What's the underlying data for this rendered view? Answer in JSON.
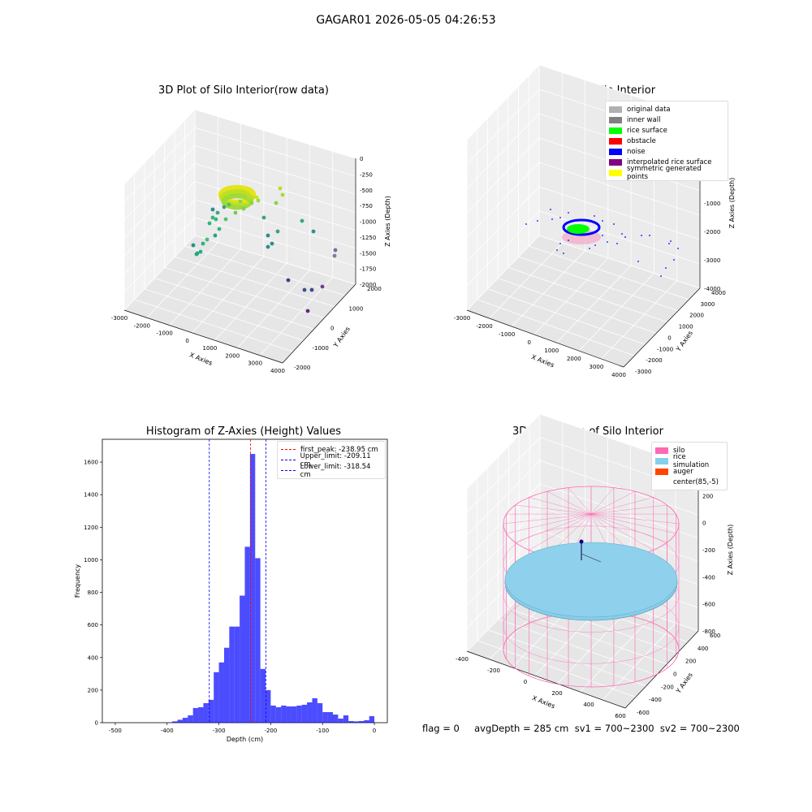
{
  "suptitle": "GAGAR01 2026-05-05 04:26:53",
  "panels": {
    "raw": {
      "title": "3D Plot of Silo Interior(row data)",
      "xlabel": "X Axies",
      "ylabel": "Y Axies",
      "zlabel": "Z Axies (Depth)",
      "xticks": [
        "-3000",
        "-2000",
        "-1000",
        "0",
        "1000",
        "2000",
        "3000",
        "4000"
      ],
      "yticks": [
        "-2000",
        "-1000",
        "0",
        "1000",
        "2000"
      ],
      "zticks": [
        "0",
        "-250",
        "-500",
        "-750",
        "-1000",
        "-1250",
        "-1500",
        "-1750",
        "-2000"
      ]
    },
    "classify": {
      "title": "3D classify of Silo Interior",
      "xlabel": "X Axies",
      "ylabel": "Y Axies",
      "zlabel": "Z Axies (Depth)",
      "xticks": [
        "-3000",
        "-2000",
        "-1000",
        "0",
        "1000",
        "2000",
        "3000",
        "4000"
      ],
      "yticks": [
        "-3000",
        "-2000",
        "-1000",
        "0",
        "1000",
        "2000",
        "3000",
        "4000"
      ],
      "zticks": [
        "2000",
        "1000",
        "0",
        "-1000",
        "-2000",
        "-3000",
        "-4000"
      ],
      "legend": [
        {
          "label": "original data",
          "color": "#b0b0b0"
        },
        {
          "label": "inner wall",
          "color": "#808080"
        },
        {
          "label": "rice surface",
          "color": "#00ff00"
        },
        {
          "label": "obstacle",
          "color": "#ff0000"
        },
        {
          "label": "noise",
          "color": "#0000ff"
        },
        {
          "label": "interpolated rice surface",
          "color": "#800080"
        },
        {
          "label": "symmetric generated points",
          "color": "#ffff00"
        }
      ]
    },
    "histogram": {
      "title": "Histogram of Z-Axies (Height) Values",
      "legend": [
        {
          "label": "first_peak: -238.95 cm",
          "color": "#ff0000"
        },
        {
          "label": "Upper_limit: -209.11 cm",
          "color": "#0000ff"
        },
        {
          "label": "Lower_limit: -318.54 cm",
          "color": "#0000ff"
        }
      ]
    },
    "simulation": {
      "title": "3D simulation of Silo Interior",
      "xlabel": "X Axies",
      "ylabel": "Y Axies",
      "zlabel": "Z Axies (Depth)",
      "xticks": [
        "-400",
        "-200",
        "0",
        "200",
        "400",
        "600"
      ],
      "yticks": [
        "-600",
        "-400",
        "-200",
        "0",
        "200",
        "400",
        "600"
      ],
      "zticks": [
        "400",
        "200",
        "0",
        "-200",
        "-400",
        "-600",
        "-800"
      ],
      "legend": [
        {
          "label": "silo",
          "color": "#ff69b4"
        },
        {
          "label": "rice simulation",
          "color": "#87ceeb"
        },
        {
          "label": "auger",
          "color": "#ff4500"
        },
        {
          "label": "center(85,-5)",
          "color": "#ffffff"
        }
      ]
    }
  },
  "footer": "flag = 0     avgDepth = 285 cm  sv1 = 700~2300  sv2 = 700~2300",
  "chart_data": [
    {
      "type": "bar",
      "title": "Histogram of Z-Axies (Height) Values",
      "xlabel": "Depth (cm)",
      "ylabel": "Frequency",
      "xlim": [
        -525,
        25
      ],
      "ylim": [
        0,
        1740
      ],
      "xticks": [
        -500,
        -400,
        -300,
        -200,
        -100,
        0
      ],
      "yticks": [
        0,
        200,
        400,
        600,
        800,
        1000,
        1200,
        1400,
        1600
      ],
      "bin_width": 10,
      "bin_starts": [
        -500,
        -490,
        -480,
        -470,
        -460,
        -450,
        -440,
        -430,
        -420,
        -410,
        -400,
        -390,
        -380,
        -370,
        -360,
        -350,
        -340,
        -330,
        -320,
        -310,
        -300,
        -290,
        -280,
        -270,
        -260,
        -250,
        -240,
        -230,
        -220,
        -210,
        -200,
        -190,
        -180,
        -170,
        -160,
        -150,
        -140,
        -130,
        -120,
        -110,
        -100,
        -90,
        -80,
        -70,
        -60,
        -50,
        -40,
        -30,
        -20,
        -10,
        0
      ],
      "values": [
        0,
        0,
        0,
        0,
        0,
        0,
        0,
        0,
        0,
        0,
        2,
        8,
        18,
        30,
        45,
        90,
        95,
        120,
        140,
        310,
        370,
        460,
        590,
        590,
        780,
        1080,
        1650,
        1010,
        330,
        200,
        105,
        95,
        105,
        100,
        100,
        105,
        110,
        125,
        150,
        120,
        65,
        65,
        50,
        25,
        45,
        10,
        8,
        10,
        15,
        40,
        0
      ],
      "bar_color": "#0000ff",
      "bar_alpha": 0.7,
      "vlines": [
        {
          "name": "first_peak",
          "x": -238.95,
          "color": "#ff0000"
        },
        {
          "name": "Upper_limit",
          "x": -209.11,
          "color": "#0000ff"
        },
        {
          "name": "Lower_limit",
          "x": -318.54,
          "color": "#0000ff"
        }
      ]
    }
  ]
}
